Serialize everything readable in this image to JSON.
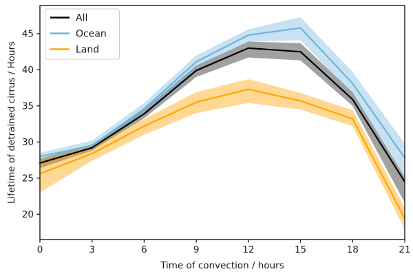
{
  "chart_data": {
    "type": "line",
    "title": "",
    "xlabel": "Time of convection / hours",
    "ylabel": "Lifetime of detrained cirrus / Hours",
    "x": [
      0,
      3,
      6,
      9,
      12,
      15,
      18,
      21
    ],
    "xticks": [
      0,
      3,
      6,
      9,
      12,
      15,
      18,
      21
    ],
    "yticks": [
      20,
      25,
      30,
      35,
      40,
      45
    ],
    "xlim": [
      0,
      21
    ],
    "ylim": [
      16.5,
      48.9
    ],
    "grid": false,
    "legend_position": "upper left",
    "series": [
      {
        "name": "All",
        "color": "#000000",
        "band_alpha": 0.37,
        "values": [
          27.1,
          29.2,
          33.9,
          39.9,
          43.0,
          42.5,
          35.9,
          24.5
        ],
        "lower": [
          26.4,
          28.8,
          33.3,
          39.0,
          41.7,
          41.3,
          35.0,
          21.6
        ],
        "upper": [
          27.7,
          29.7,
          34.5,
          40.6,
          43.9,
          43.7,
          36.9,
          25.2
        ]
      },
      {
        "name": "Ocean",
        "color": "#6eb4dc",
        "band_alpha": 0.38,
        "values": [
          28.0,
          29.5,
          34.6,
          41.1,
          44.8,
          45.8,
          38.1,
          27.8
        ],
        "lower": [
          27.4,
          28.9,
          33.8,
          40.3,
          43.9,
          44.1,
          36.6,
          25.2
        ],
        "upper": [
          28.5,
          30.2,
          35.4,
          42.0,
          45.6,
          47.3,
          39.7,
          29.8
        ]
      },
      {
        "name": "Land",
        "color": "#ffa500",
        "band_alpha": 0.42,
        "values": [
          25.6,
          28.4,
          32.2,
          35.5,
          37.3,
          35.7,
          33.2,
          19.4
        ],
        "lower": [
          23.0,
          27.4,
          31.0,
          34.0,
          35.4,
          34.5,
          32.2,
          17.9
        ],
        "upper": [
          27.6,
          29.4,
          33.2,
          36.9,
          38.7,
          36.8,
          34.4,
          20.9
        ]
      }
    ]
  },
  "layout_colors": {
    "spine": "#1a1a1a",
    "tick_text": "#1a1a1a",
    "legend_border": "#cccccc",
    "legend_bg": "#ffffff"
  }
}
